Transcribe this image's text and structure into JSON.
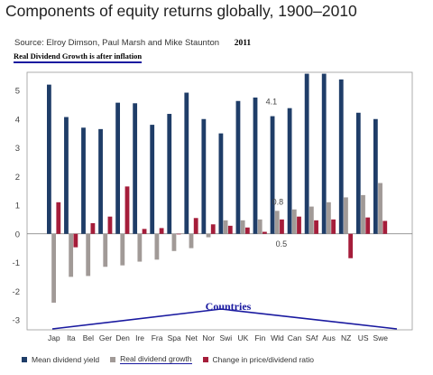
{
  "title": "Components of equity returns globally, 1900–2010",
  "source_text": "Source: Elroy Dimson, Paul Marsh and Mike Staunton",
  "source_year": "2011",
  "note": "Real Dividend Growth is after inflation",
  "countries_label": "Countries",
  "colors": {
    "yield": "#1f3d68",
    "growth": "#a19a97",
    "ratio": "#a51d3a"
  },
  "chart_data": {
    "type": "bar",
    "title": "Components of equity returns globally, 1900–2010",
    "xlabel": "Countries",
    "ylabel": "",
    "ylim": [
      -3,
      6
    ],
    "yticks": [
      "5",
      "4",
      "3",
      "2",
      "1",
      "0",
      "-1",
      "-2",
      "-3"
    ],
    "grid": false,
    "legend_position": "bottom",
    "categories": [
      "Jap",
      "Ita",
      "Bel",
      "Ger",
      "Den",
      "Ire",
      "Fra",
      "Spa",
      "Net",
      "Nor",
      "Swi",
      "UK",
      "Fin",
      "Wld",
      "Can",
      "SAf",
      "Aus",
      "NZ",
      "US",
      "Swe"
    ],
    "series": [
      {
        "name": "Mean dividend yield",
        "values": [
          5.2,
          4.07,
          3.7,
          3.65,
          4.57,
          4.55,
          3.8,
          4.18,
          4.92,
          4.0,
          3.5,
          4.63,
          4.75,
          4.1,
          4.38,
          5.58,
          5.58,
          5.38,
          4.22,
          4.0
        ]
      },
      {
        "name": "Real dividend growth",
        "values": [
          -2.4,
          -1.5,
          -1.47,
          -1.15,
          -1.1,
          -0.97,
          -0.9,
          -0.6,
          -0.5,
          -0.12,
          0.47,
          0.47,
          0.5,
          0.8,
          0.85,
          0.95,
          1.1,
          1.27,
          1.35,
          1.77
        ]
      },
      {
        "name": "Change in price/dividend ratio",
        "values": [
          1.1,
          -0.47,
          0.37,
          0.6,
          1.65,
          0.17,
          0.2,
          0.0,
          0.55,
          0.33,
          0.28,
          0.22,
          0.07,
          0.5,
          0.6,
          0.47,
          0.5,
          -0.85,
          0.57,
          0.45
        ]
      }
    ],
    "annotations": [
      "4.1",
      "0.8",
      "0.5"
    ],
    "legend": [
      "Mean dividend yield",
      "Real dividend growth",
      "Change in price/dividend ratio"
    ]
  }
}
